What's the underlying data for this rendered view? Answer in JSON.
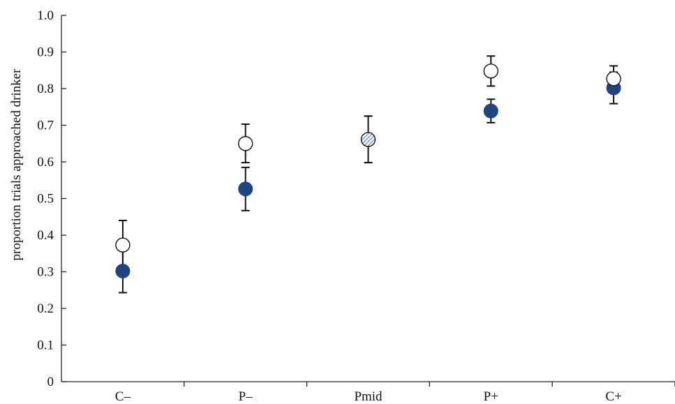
{
  "chart_data": {
    "type": "scatter",
    "title": "",
    "xlabel": "",
    "ylabel": "proportion trials approached drinker",
    "categories": [
      "C–",
      "P–",
      "Pmid",
      "P+",
      "C+"
    ],
    "ylim": [
      0,
      1.0
    ],
    "yticks": [
      "0",
      "0.1",
      "0.2",
      "0.3",
      "0.4",
      "0.5",
      "0.6",
      "0.7",
      "0.8",
      "0.9",
      "1.0"
    ],
    "grid": false,
    "legend": "none",
    "series": [
      {
        "style": "filled",
        "color": "#1f4480",
        "values": [
          0.302,
          0.526,
          0.661,
          0.739,
          0.802
        ],
        "err_low": [
          0.243,
          0.467,
          0.598,
          0.707,
          0.759
        ],
        "err_high": [
          0.36,
          0.585,
          0.725,
          0.771,
          0.845
        ]
      },
      {
        "style": "open",
        "color": "#ffffff",
        "values": [
          0.373,
          0.65,
          0.661,
          0.848,
          0.827
        ],
        "err_low": [
          0.31,
          0.598,
          0.598,
          0.807,
          0.793
        ],
        "err_high": [
          0.44,
          0.703,
          0.725,
          0.889,
          0.862
        ]
      }
    ],
    "pmid_marker_color": "#5b7fc4"
  }
}
